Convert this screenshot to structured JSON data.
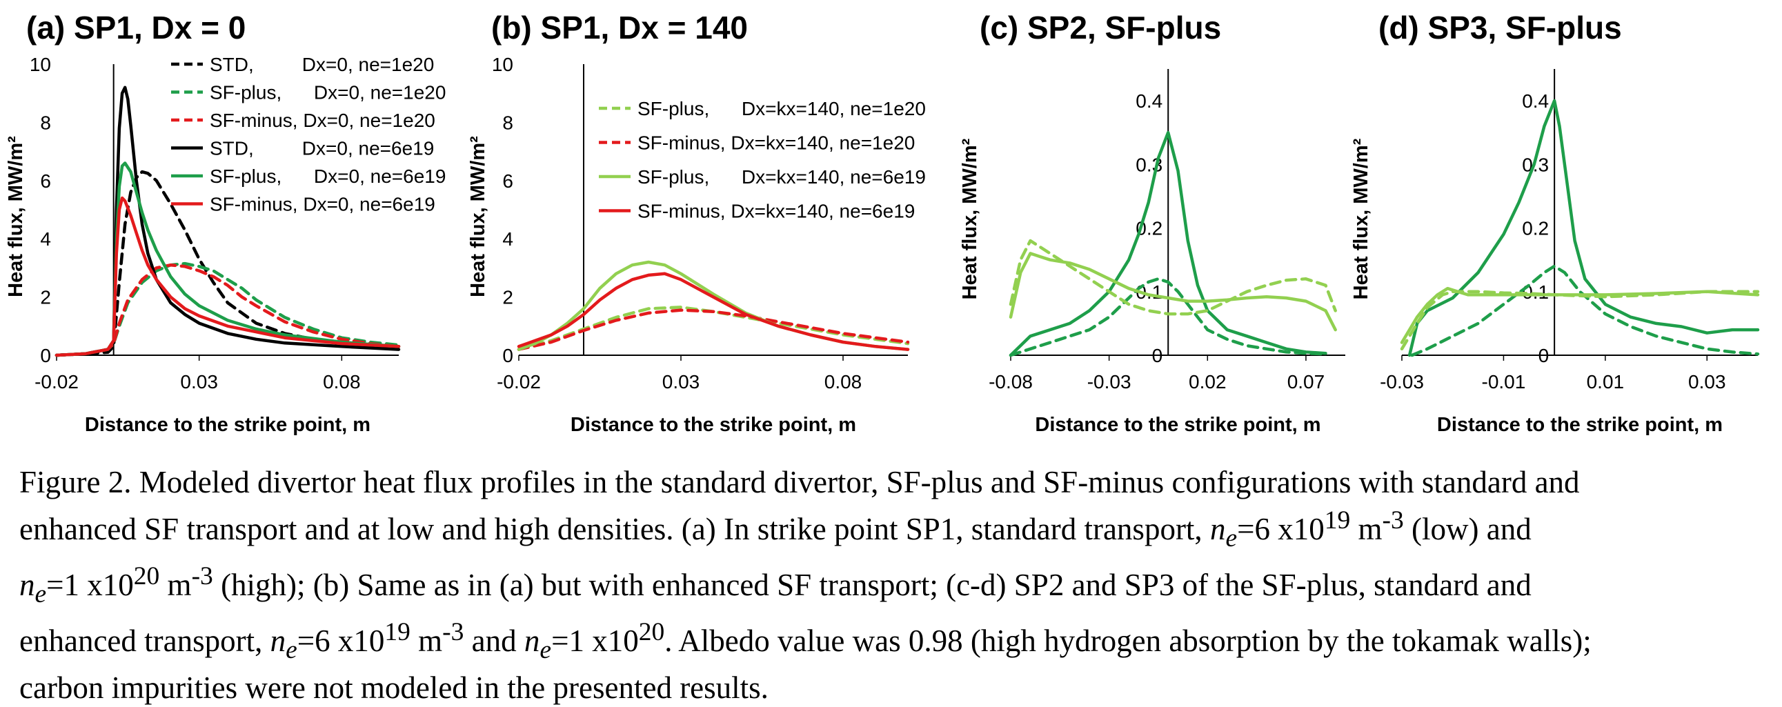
{
  "colors": {
    "black": "#000000",
    "green_dark": "#1e9e4a",
    "green_light": "#92d050",
    "red": "#e31a1c"
  },
  "chart_data": [
    {
      "type": "line",
      "panel": "a",
      "title": "(a) SP1, Dx = 0",
      "xlabel": "Distance to the strike point, m",
      "ylabel": "Heat flux, MW/m²",
      "xlim": [
        -0.02,
        0.1
      ],
      "ylim": [
        0,
        10
      ],
      "xticks": [
        "-0.02",
        "0.03",
        "0.08"
      ],
      "yticks": [
        "0",
        "2",
        "4",
        "6",
        "8",
        "10"
      ],
      "legend_position": "top-right",
      "strike_line_x": 0,
      "series": [
        {
          "name": "STD,         Dx=0, ne=1e20",
          "color": "black",
          "dash": true,
          "x": [
            -0.02,
            -0.01,
            -0.002,
            0,
            0.002,
            0.004,
            0.006,
            0.008,
            0.01,
            0.012,
            0.015,
            0.02,
            0.025,
            0.03,
            0.035,
            0.04,
            0.05,
            0.06,
            0.07,
            0.08,
            0.09,
            0.1
          ],
          "y": [
            0,
            0.05,
            0.1,
            0.3,
            2.5,
            4.5,
            5.6,
            6.1,
            6.3,
            6.25,
            6.0,
            5.2,
            4.3,
            3.3,
            2.5,
            1.8,
            1.1,
            0.75,
            0.55,
            0.45,
            0.35,
            0.3
          ]
        },
        {
          "name": "SF-plus,      Dx=0, ne=1e20",
          "color": "green_dark",
          "dash": true,
          "x": [
            -0.02,
            -0.01,
            -0.002,
            0,
            0.002,
            0.005,
            0.01,
            0.015,
            0.02,
            0.025,
            0.03,
            0.035,
            0.04,
            0.045,
            0.05,
            0.06,
            0.07,
            0.08,
            0.09,
            0.1
          ],
          "y": [
            0,
            0.05,
            0.2,
            0.4,
            1.0,
            1.8,
            2.5,
            2.9,
            3.1,
            3.15,
            3.05,
            2.9,
            2.6,
            2.3,
            1.9,
            1.3,
            0.9,
            0.6,
            0.45,
            0.35
          ]
        },
        {
          "name": "SF-minus, Dx=0, ne=1e20",
          "color": "red",
          "dash": true,
          "x": [
            -0.02,
            -0.01,
            -0.002,
            0,
            0.002,
            0.005,
            0.01,
            0.015,
            0.02,
            0.025,
            0.03,
            0.035,
            0.04,
            0.045,
            0.05,
            0.06,
            0.07,
            0.08,
            0.09,
            0.1
          ],
          "y": [
            0,
            0.05,
            0.2,
            0.4,
            1.1,
            1.9,
            2.6,
            3.0,
            3.1,
            3.05,
            2.9,
            2.7,
            2.4,
            2.0,
            1.7,
            1.15,
            0.8,
            0.55,
            0.4,
            0.3
          ]
        },
        {
          "name": "STD,         Dx=0, ne=6e19",
          "color": "black",
          "dash": false,
          "x": [
            -0.02,
            -0.01,
            -0.002,
            0,
            0.001,
            0.002,
            0.003,
            0.004,
            0.005,
            0.006,
            0.008,
            0.01,
            0.012,
            0.015,
            0.02,
            0.025,
            0.03,
            0.04,
            0.05,
            0.06,
            0.08,
            0.1
          ],
          "y": [
            0,
            0.05,
            0.2,
            0.5,
            5.0,
            7.8,
            9.0,
            9.2,
            8.8,
            7.9,
            6.0,
            4.5,
            3.5,
            2.6,
            1.8,
            1.4,
            1.1,
            0.75,
            0.55,
            0.42,
            0.3,
            0.2
          ]
        },
        {
          "name": "SF-plus,      Dx=0, ne=6e19",
          "color": "green_dark",
          "dash": false,
          "x": [
            -0.02,
            -0.01,
            -0.002,
            0,
            0.001,
            0.002,
            0.003,
            0.004,
            0.006,
            0.008,
            0.01,
            0.012,
            0.015,
            0.02,
            0.025,
            0.03,
            0.04,
            0.05,
            0.06,
            0.08,
            0.1
          ],
          "y": [
            0,
            0.05,
            0.2,
            0.5,
            4.0,
            5.8,
            6.5,
            6.6,
            6.3,
            5.6,
            4.9,
            4.3,
            3.6,
            2.7,
            2.1,
            1.7,
            1.2,
            0.9,
            0.7,
            0.45,
            0.3
          ]
        },
        {
          "name": "SF-minus, Dx=0, ne=6e19",
          "color": "red",
          "dash": false,
          "x": [
            -0.02,
            -0.01,
            -0.002,
            0,
            0.001,
            0.002,
            0.003,
            0.004,
            0.006,
            0.008,
            0.01,
            0.012,
            0.015,
            0.02,
            0.025,
            0.03,
            0.04,
            0.05,
            0.06,
            0.08,
            0.1
          ],
          "y": [
            0,
            0.05,
            0.2,
            0.5,
            3.5,
            5.0,
            5.4,
            5.3,
            4.8,
            4.2,
            3.6,
            3.1,
            2.6,
            2.0,
            1.6,
            1.35,
            1.0,
            0.8,
            0.6,
            0.4,
            0.3
          ]
        }
      ]
    },
    {
      "type": "line",
      "panel": "b",
      "title": "(b) SP1, Dx = 140",
      "xlabel": "Distance to the strike point, m",
      "ylabel": "Heat flux, MW/m²",
      "xlim": [
        -0.02,
        0.1
      ],
      "ylim": [
        0,
        10
      ],
      "xticks": [
        "-0.02",
        "0.03",
        "0.08"
      ],
      "yticks": [
        "0",
        "2",
        "4",
        "6",
        "8",
        "10"
      ],
      "legend_position": "top-right",
      "strike_line_x": 0,
      "series": [
        {
          "name": "SF-plus,      Dx=kx=140, ne=1e20",
          "color": "green_light",
          "dash": true,
          "x": [
            -0.02,
            -0.01,
            0,
            0.01,
            0.02,
            0.03,
            0.04,
            0.05,
            0.06,
            0.07,
            0.08,
            0.09,
            0.1
          ],
          "y": [
            0.2,
            0.5,
            0.9,
            1.3,
            1.6,
            1.65,
            1.5,
            1.3,
            1.1,
            0.9,
            0.7,
            0.55,
            0.4
          ]
        },
        {
          "name": "SF-minus, Dx=kx=140, ne=1e20",
          "color": "red",
          "dash": true,
          "x": [
            -0.02,
            -0.01,
            0,
            0.01,
            0.02,
            0.03,
            0.04,
            0.05,
            0.06,
            0.07,
            0.08,
            0.09,
            0.1
          ],
          "y": [
            0.2,
            0.45,
            0.85,
            1.2,
            1.45,
            1.55,
            1.5,
            1.35,
            1.15,
            0.95,
            0.75,
            0.6,
            0.45
          ]
        },
        {
          "name": "SF-plus,      Dx=kx=140, ne=6e19",
          "color": "green_light",
          "dash": false,
          "x": [
            -0.02,
            -0.015,
            -0.01,
            -0.005,
            0,
            0.005,
            0.01,
            0.015,
            0.02,
            0.025,
            0.03,
            0.04,
            0.05,
            0.06,
            0.07,
            0.08,
            0.09,
            0.1
          ],
          "y": [
            0.2,
            0.4,
            0.7,
            1.1,
            1.6,
            2.3,
            2.8,
            3.1,
            3.2,
            3.1,
            2.8,
            2.1,
            1.45,
            1.0,
            0.7,
            0.45,
            0.3,
            0.2
          ]
        },
        {
          "name": "SF-minus, Dx=kx=140, ne=6e19",
          "color": "red",
          "dash": false,
          "x": [
            -0.02,
            -0.015,
            -0.01,
            -0.005,
            0,
            0.005,
            0.01,
            0.015,
            0.02,
            0.025,
            0.03,
            0.04,
            0.05,
            0.06,
            0.07,
            0.08,
            0.09,
            0.1
          ],
          "y": [
            0.3,
            0.5,
            0.7,
            1.0,
            1.4,
            1.9,
            2.3,
            2.6,
            2.75,
            2.8,
            2.6,
            2.0,
            1.4,
            1.0,
            0.7,
            0.45,
            0.3,
            0.2
          ]
        }
      ]
    },
    {
      "type": "line",
      "panel": "c",
      "title": "(c) SP2, SF-plus",
      "xlabel": "Distance to the strike point, m",
      "ylabel": "Heat flux, MW/m²",
      "xlim": [
        -0.08,
        0.09
      ],
      "ylim": [
        0,
        0.45
      ],
      "xticks": [
        "-0.08",
        "-0.03",
        "0.02",
        "0.07"
      ],
      "yticks": [
        "0",
        "0.1",
        "0.2",
        "0.3",
        "0.4"
      ],
      "strike_line_x": 0,
      "series": [
        {
          "name": "",
          "color": "green_dark",
          "dash": false,
          "x": [
            -0.08,
            -0.07,
            -0.06,
            -0.05,
            -0.04,
            -0.03,
            -0.02,
            -0.015,
            -0.01,
            -0.005,
            0,
            0.005,
            0.01,
            0.015,
            0.02,
            0.03,
            0.04,
            0.05,
            0.06,
            0.07,
            0.08
          ],
          "y": [
            0,
            0.03,
            0.04,
            0.05,
            0.07,
            0.1,
            0.15,
            0.19,
            0.24,
            0.31,
            0.35,
            0.29,
            0.18,
            0.11,
            0.07,
            0.04,
            0.03,
            0.02,
            0.01,
            0.005,
            0.003
          ]
        },
        {
          "name": "",
          "color": "green_dark",
          "dash": true,
          "x": [
            -0.08,
            -0.07,
            -0.06,
            -0.05,
            -0.04,
            -0.03,
            -0.02,
            -0.015,
            -0.01,
            -0.005,
            0,
            0.005,
            0.01,
            0.015,
            0.02,
            0.03,
            0.04,
            0.05,
            0.06,
            0.07,
            0.08
          ],
          "y": [
            0,
            0.01,
            0.02,
            0.03,
            0.04,
            0.06,
            0.09,
            0.105,
            0.115,
            0.12,
            0.115,
            0.1,
            0.08,
            0.06,
            0.04,
            0.025,
            0.015,
            0.01,
            0.005,
            0.003,
            0.002
          ]
        },
        {
          "name": "",
          "color": "green_light",
          "dash": false,
          "x": [
            -0.08,
            -0.075,
            -0.07,
            -0.065,
            -0.06,
            -0.05,
            -0.04,
            -0.03,
            -0.02,
            -0.01,
            0,
            0.01,
            0.02,
            0.03,
            0.04,
            0.05,
            0.06,
            0.07,
            0.08,
            0.085
          ],
          "y": [
            0.06,
            0.13,
            0.16,
            0.155,
            0.15,
            0.145,
            0.135,
            0.12,
            0.105,
            0.095,
            0.09,
            0.085,
            0.085,
            0.087,
            0.09,
            0.092,
            0.09,
            0.085,
            0.07,
            0.04
          ]
        },
        {
          "name": "",
          "color": "green_light",
          "dash": true,
          "x": [
            -0.08,
            -0.075,
            -0.07,
            -0.065,
            -0.06,
            -0.05,
            -0.04,
            -0.03,
            -0.02,
            -0.01,
            0,
            0.01,
            0.02,
            0.03,
            0.04,
            0.05,
            0.06,
            0.07,
            0.08,
            0.085
          ],
          "y": [
            0.08,
            0.15,
            0.18,
            0.17,
            0.16,
            0.14,
            0.12,
            0.1,
            0.08,
            0.07,
            0.065,
            0.065,
            0.07,
            0.085,
            0.1,
            0.11,
            0.118,
            0.12,
            0.11,
            0.07
          ]
        }
      ]
    },
    {
      "type": "line",
      "panel": "d",
      "title": "(d) SP3, SF-plus",
      "xlabel": "Distance to the strike point, m",
      "ylabel": "Heat flux, MW/m²",
      "xlim": [
        -0.03,
        0.04
      ],
      "ylim": [
        0,
        0.45
      ],
      "xticks": [
        "-0.03",
        "-0.01",
        "0.01",
        "0.03"
      ],
      "yticks": [
        "0",
        "0.1",
        "0.2",
        "0.3",
        "0.4"
      ],
      "strike_line_x": 0,
      "series": [
        {
          "name": "",
          "color": "green_dark",
          "dash": false,
          "x": [
            -0.0285,
            -0.027,
            -0.025,
            -0.02,
            -0.015,
            -0.01,
            -0.007,
            -0.004,
            -0.002,
            0,
            0.001,
            0.002,
            0.004,
            0.006,
            0.01,
            0.015,
            0.02,
            0.025,
            0.03,
            0.035,
            0.04
          ],
          "y": [
            0,
            0.05,
            0.07,
            0.09,
            0.13,
            0.19,
            0.24,
            0.3,
            0.36,
            0.4,
            0.36,
            0.3,
            0.18,
            0.12,
            0.08,
            0.06,
            0.05,
            0.045,
            0.035,
            0.04,
            0.04
          ]
        },
        {
          "name": "",
          "color": "green_dark",
          "dash": true,
          "x": [
            -0.028,
            -0.025,
            -0.02,
            -0.015,
            -0.01,
            -0.005,
            -0.002,
            0,
            0.002,
            0.005,
            0.01,
            0.015,
            0.02,
            0.025,
            0.03,
            0.035,
            0.04
          ],
          "y": [
            0,
            0.01,
            0.03,
            0.05,
            0.08,
            0.11,
            0.13,
            0.14,
            0.13,
            0.1,
            0.065,
            0.045,
            0.03,
            0.02,
            0.01,
            0.005,
            0.002
          ]
        },
        {
          "name": "",
          "color": "green_light",
          "dash": false,
          "x": [
            -0.03,
            -0.027,
            -0.025,
            -0.023,
            -0.021,
            -0.019,
            -0.017,
            -0.015,
            -0.01,
            -0.005,
            0,
            0.01,
            0.02,
            0.03,
            0.04
          ],
          "y": [
            0.02,
            0.06,
            0.08,
            0.095,
            0.105,
            0.1,
            0.095,
            0.095,
            0.095,
            0.095,
            0.095,
            0.095,
            0.097,
            0.1,
            0.095
          ]
        },
        {
          "name": "",
          "color": "green_light",
          "dash": true,
          "x": [
            -0.03,
            -0.027,
            -0.025,
            -0.022,
            -0.02,
            -0.015,
            -0.01,
            -0.005,
            0,
            0.01,
            0.02,
            0.03,
            0.04
          ],
          "y": [
            0.01,
            0.05,
            0.075,
            0.095,
            0.1,
            0.1,
            0.098,
            0.097,
            0.095,
            0.092,
            0.095,
            0.1,
            0.1
          ]
        }
      ]
    }
  ],
  "caption": {
    "line1": "Figure 2. Modeled divertor heat flux profiles in the standard divertor, SF-plus and SF-minus configurations with standard and",
    "line2_a": "enhanced SF transport and at low and high densities. (a) In strike point SP1, standard transport, ",
    "ne": "n",
    "e_sub": "e",
    "low_val": "=6 x10",
    "exp19": "19",
    "unit_m": " m",
    "exp_m3": "-3",
    "low_word": " (low) and",
    "high_val": "=1 x10",
    "exp20": "20",
    "line3_b": " (high); (b) Same as in (a) but with enhanced SF transport; (c-d) SP2 and SP3 of the SF-plus, standard and",
    "line4_a": "enhanced transport, ",
    "and_word": " and ",
    "line4_b": ". Albedo value was 0.98 (high hydrogen absorption by the tokamak walls);",
    "line5": "carbon impurities were not modeled in the presented results."
  }
}
